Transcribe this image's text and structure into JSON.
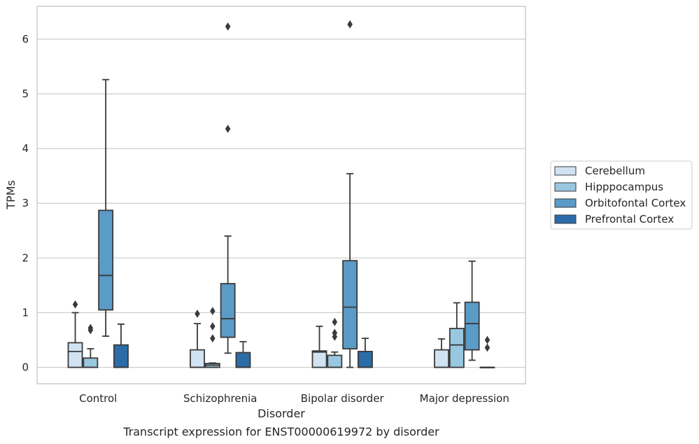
{
  "chart_data": {
    "type": "box",
    "caption": "Transcript expression for ENST00000619972 by disorder",
    "xlabel": "Disorder",
    "ylabel": "TPMs",
    "ylim": [
      -0.3,
      6.6
    ],
    "yticks": [
      0,
      1,
      2,
      3,
      4,
      5,
      6
    ],
    "grid": "horizontal",
    "legend_position": "right",
    "categories": [
      "Control",
      "Schizophrenia",
      "Bipolar disorder",
      "Major depression"
    ],
    "series": [
      {
        "name": "Cerebellum",
        "color": "#d1e2f3",
        "boxes": [
          {
            "whislo": 0,
            "q1": 0,
            "med": 0.29,
            "q3": 0.45,
            "whishi": 1.0,
            "fliers": [
              1.15
            ]
          },
          {
            "whislo": 0,
            "q1": 0,
            "med": 0.0,
            "q3": 0.32,
            "whishi": 0.8,
            "fliers": [
              0.98
            ]
          },
          {
            "whislo": 0,
            "q1": 0,
            "med": 0.28,
            "q3": 0.3,
            "whishi": 0.75,
            "fliers": []
          },
          {
            "whislo": 0,
            "q1": 0,
            "med": 0.0,
            "q3": 0.32,
            "whishi": 0.52,
            "fliers": []
          }
        ]
      },
      {
        "name": "Hipppocampus",
        "color": "#9ac7e0",
        "boxes": [
          {
            "whislo": 0,
            "q1": 0,
            "med": 0.0,
            "q3": 0.17,
            "whishi": 0.34,
            "fliers": [
              0.68,
              0.72
            ]
          },
          {
            "whislo": 0,
            "q1": 0,
            "med": 0.04,
            "q3": 0.07,
            "whishi": 0.08,
            "fliers": [
              0.53,
              0.75,
              1.03
            ]
          },
          {
            "whislo": 0,
            "q1": 0,
            "med": 0.0,
            "q3": 0.22,
            "whishi": 0.28,
            "fliers": [
              0.56,
              0.63,
              0.83
            ]
          },
          {
            "whislo": 0,
            "q1": 0,
            "med": 0.41,
            "q3": 0.71,
            "whishi": 1.18,
            "fliers": []
          }
        ]
      },
      {
        "name": "Orbitofontal Cortex",
        "color": "#5b9bc8",
        "boxes": [
          {
            "whislo": 0.57,
            "q1": 1.05,
            "med": 1.68,
            "q3": 2.87,
            "whishi": 5.26,
            "fliers": []
          },
          {
            "whislo": 0.26,
            "q1": 0.55,
            "med": 0.89,
            "q3": 1.53,
            "whishi": 2.4,
            "fliers": [
              4.36,
              6.23
            ]
          },
          {
            "whislo": 0.0,
            "q1": 0.34,
            "med": 1.1,
            "q3": 1.95,
            "whishi": 3.54,
            "fliers": [
              6.27
            ]
          },
          {
            "whislo": 0.13,
            "q1": 0.32,
            "med": 0.8,
            "q3": 1.19,
            "whishi": 1.94,
            "fliers": []
          }
        ]
      },
      {
        "name": "Prefrontal Cortex",
        "color": "#2b6ca8",
        "boxes": [
          {
            "whislo": 0,
            "q1": 0,
            "med": 0.0,
            "q3": 0.41,
            "whishi": 0.79,
            "fliers": []
          },
          {
            "whislo": 0,
            "q1": 0,
            "med": 0.0,
            "q3": 0.27,
            "whishi": 0.47,
            "fliers": []
          },
          {
            "whislo": 0,
            "q1": 0,
            "med": 0.0,
            "q3": 0.29,
            "whishi": 0.53,
            "fliers": []
          },
          {
            "whislo": 0,
            "q1": 0,
            "med": 0.0,
            "q3": 0.0,
            "whishi": 0.0,
            "fliers": [
              0.36,
              0.5
            ]
          }
        ]
      }
    ]
  }
}
